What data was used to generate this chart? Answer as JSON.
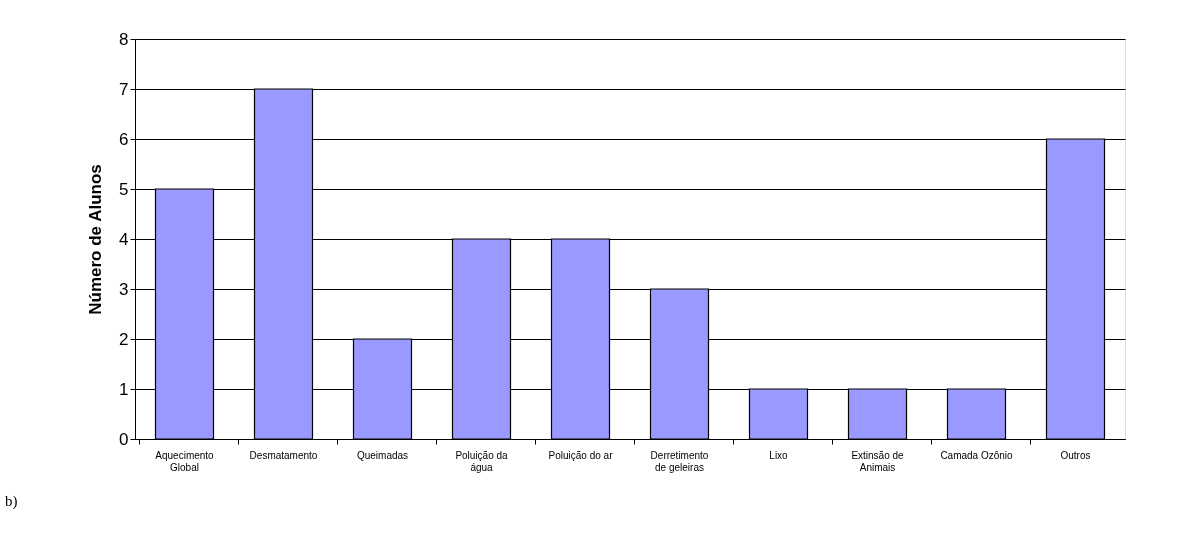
{
  "chart_data": {
    "type": "bar",
    "ylabel": "Número de Alunos",
    "categories": [
      "Aquecimento\nGlobal",
      "Desmatamento",
      "Queimadas",
      "Poluição da\nágua",
      "Poluição do ar",
      "Derretimento\nde geleiras",
      "Lixo",
      "Extinsão de\nAnimais",
      "Camada Ozônio",
      "Outros"
    ],
    "values": [
      5,
      7,
      2,
      4,
      4,
      3,
      1,
      1,
      1,
      6
    ],
    "color": "#9999ff",
    "ylim": [
      0,
      8
    ],
    "yticks": [
      0,
      1,
      2,
      3,
      4,
      5,
      6,
      7,
      8
    ],
    "grid": "y",
    "annotations": [
      "b)"
    ]
  }
}
